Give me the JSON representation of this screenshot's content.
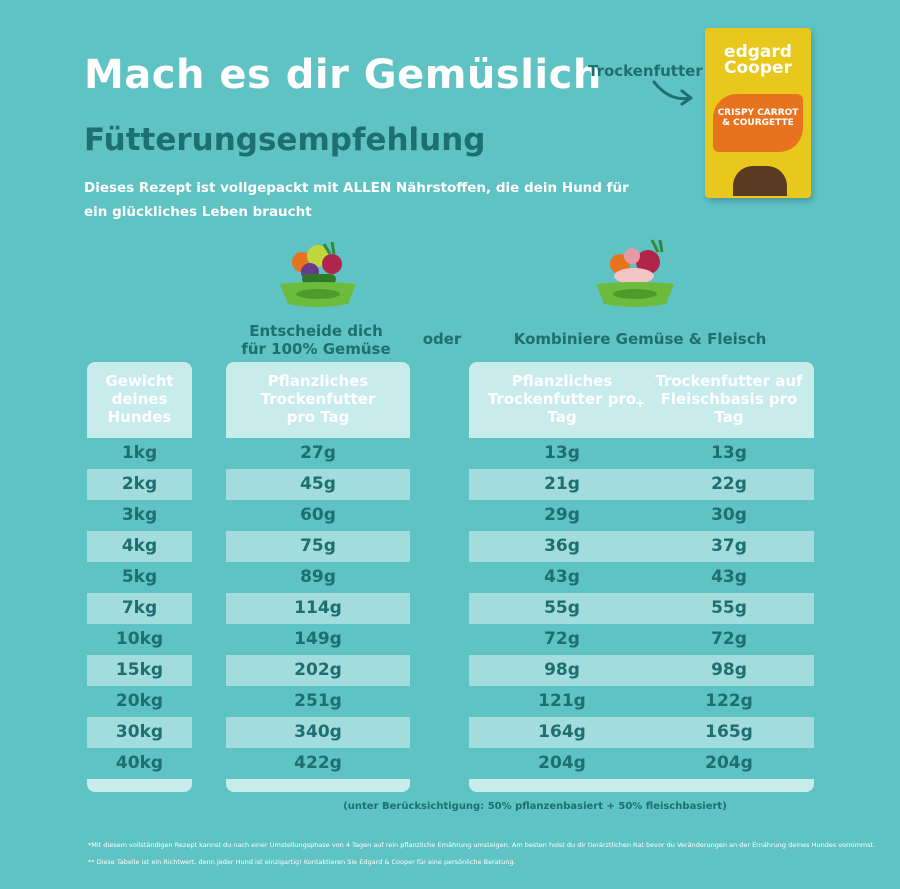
{
  "title": "Mach es dir Gemüslich",
  "subtitle": "Fütterungsempfehlung",
  "intro": "Dieses Rezept ist vollgepackt mit ALLEN Nährstoffen, die dein Hund für ein glückliches Leben braucht",
  "pack_label": "Trockenfutter",
  "product": {
    "brand_line1": "edgard",
    "brand_line2": "Cooper",
    "name": "CRISPY CARROT & COURGETTE"
  },
  "col_veg_title": "Entscheide dich für 100% Gemüse",
  "or_label": "oder",
  "col_combo_title": "Kombiniere Gemüse & Fleisch",
  "headers": {
    "weight": "Gewicht deines Hundes",
    "plant": "Pflanzliches Trockenfutter pro Tag",
    "plant_combo": "Pflanzliches Trockenfutter pro Tag",
    "plus": "+",
    "meat": "Trockenfutter auf Fleischbasis pro Tag"
  },
  "rows": [
    {
      "weight": "1kg",
      "plant": "27g",
      "combo_plant": "13g",
      "combo_meat": "13g"
    },
    {
      "weight": "2kg",
      "plant": "45g",
      "combo_plant": "21g",
      "combo_meat": "22g"
    },
    {
      "weight": "3kg",
      "plant": "60g",
      "combo_plant": "29g",
      "combo_meat": "30g"
    },
    {
      "weight": "4kg",
      "plant": "75g",
      "combo_plant": "36g",
      "combo_meat": "37g"
    },
    {
      "weight": "5kg",
      "plant": "89g",
      "combo_plant": "43g",
      "combo_meat": "43g"
    },
    {
      "weight": "7kg",
      "plant": "114g",
      "combo_plant": "55g",
      "combo_meat": "55g"
    },
    {
      "weight": "10kg",
      "plant": "149g",
      "combo_plant": "72g",
      "combo_meat": "72g"
    },
    {
      "weight": "15kg",
      "plant": "202g",
      "combo_plant": "98g",
      "combo_meat": "98g"
    },
    {
      "weight": "20kg",
      "plant": "251g",
      "combo_plant": "121g",
      "combo_meat": "122g"
    },
    {
      "weight": "30kg",
      "plant": "340g",
      "combo_plant": "164g",
      "combo_meat": "165g"
    },
    {
      "weight": "40kg",
      "plant": "422g",
      "combo_plant": "204g",
      "combo_meat": "204g"
    }
  ],
  "combo_note": "(unter Berücksichtigung: 50% pflanzenbasiert + 50% fleischbasiert)",
  "footnote1": "*Mit diesem vollständigen Rezept kannst du nach einer Umstellungsphase von 4 Tagen auf rein pflanzliche Ernährung umsteigen. Am besten holst du dir tierärztlichen Rat bevor du Veränderungen an der Ernährung deines Hundes vornimmst.",
  "footnote2": "** Diese Tabelle ist ein Richtwert, denn jeder Hund ist einzigartig! Kontaktieren Sie Edgard & Cooper für eine persönliche Beratung.",
  "colors": {
    "background": "#5fc2c3",
    "dark_teal": "#1d6f72",
    "panel": "#c8ecec",
    "row_light": "#a2dcdc",
    "pack_yellow": "#e9c81e",
    "pack_orange": "#e8731e"
  }
}
